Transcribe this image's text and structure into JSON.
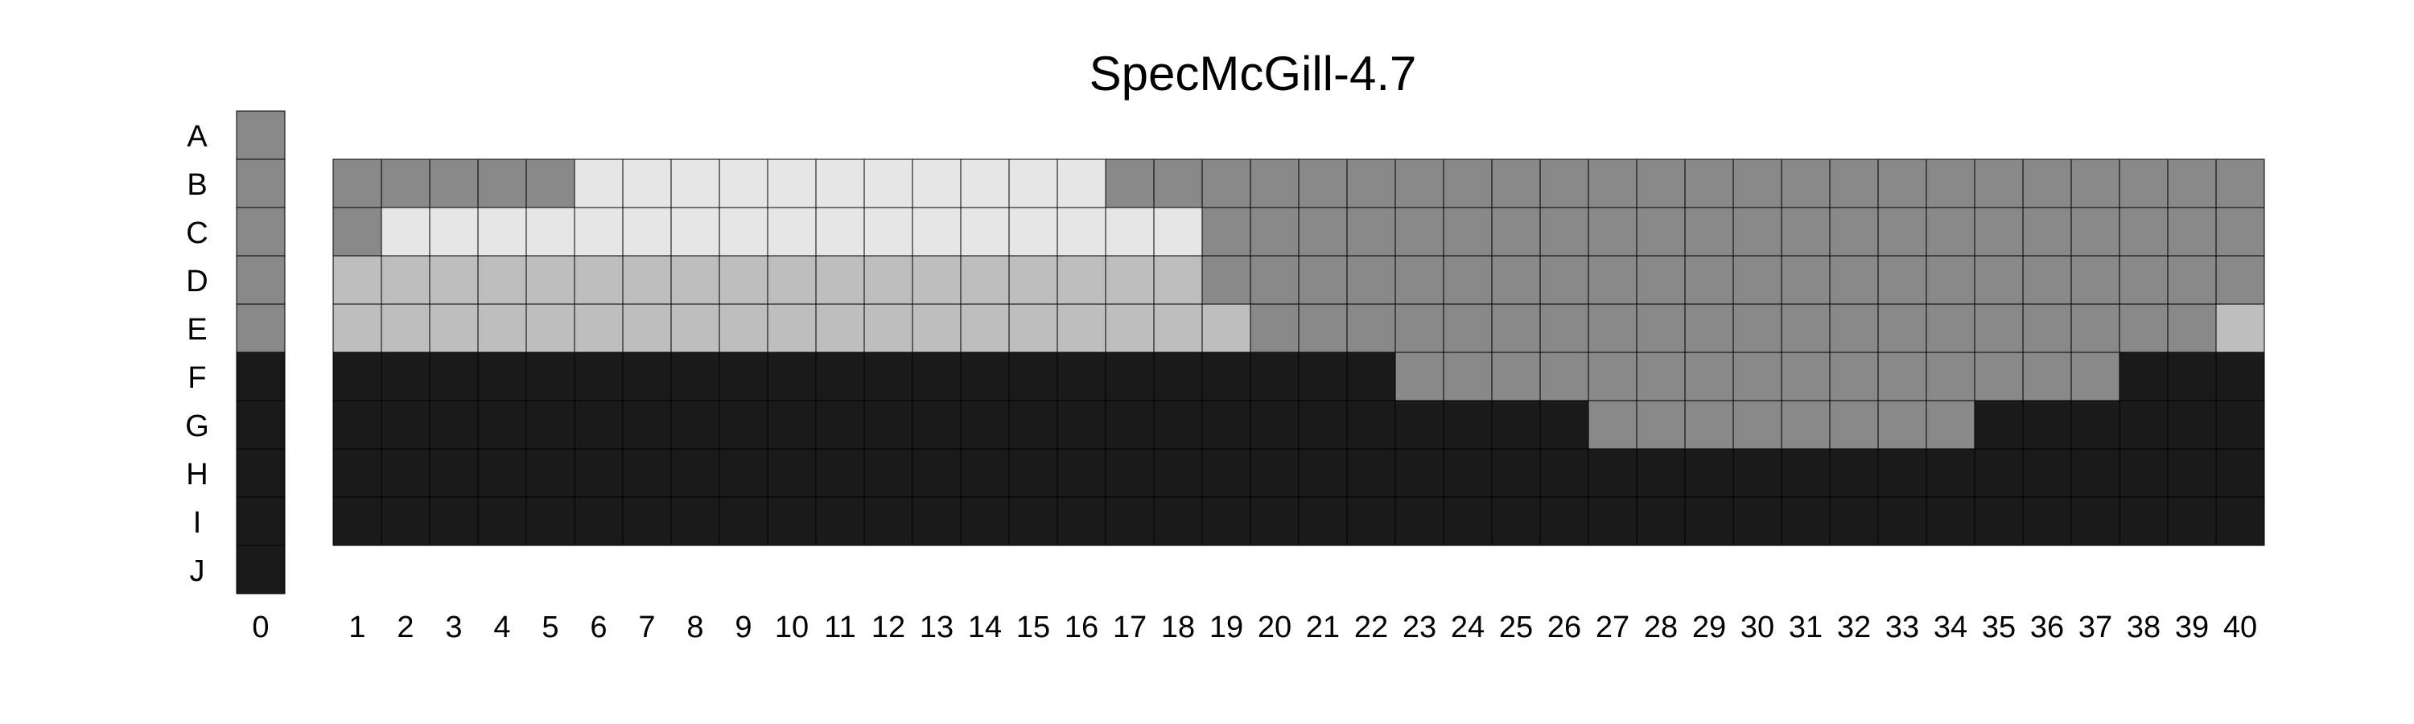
{
  "chart_data": {
    "type": "heatmap",
    "title": "SpecMcGill-4.7",
    "xlabel": "",
    "ylabel": "",
    "rows": [
      "A",
      "B",
      "C",
      "D",
      "E",
      "F",
      "G",
      "H",
      "I",
      "J"
    ],
    "column_0": {
      "label": "0",
      "values": [
        2,
        2,
        2,
        2,
        2,
        3,
        3,
        3,
        3,
        3
      ]
    },
    "columns": [
      "1",
      "2",
      "3",
      "4",
      "5",
      "6",
      "7",
      "8",
      "9",
      "10",
      "11",
      "12",
      "13",
      "14",
      "15",
      "16",
      "17",
      "18",
      "19",
      "20",
      "21",
      "22",
      "23",
      "24",
      "25",
      "26",
      "27",
      "28",
      "29",
      "30",
      "31",
      "32",
      "33",
      "34",
      "35",
      "36",
      "37",
      "38",
      "39",
      "40"
    ],
    "grid_rows": [
      "B",
      "C",
      "D",
      "E",
      "F",
      "G",
      "H",
      "I"
    ],
    "values": [
      [
        2,
        2,
        2,
        2,
        2,
        0,
        0,
        0,
        0,
        0,
        0,
        0,
        0,
        0,
        0,
        0,
        2,
        2,
        2,
        2,
        2,
        2,
        2,
        2,
        2,
        2,
        2,
        2,
        2,
        2,
        2,
        2,
        2,
        2,
        2,
        2,
        2,
        2,
        2,
        2
      ],
      [
        2,
        0,
        0,
        0,
        0,
        0,
        0,
        0,
        0,
        0,
        0,
        0,
        0,
        0,
        0,
        0,
        0,
        0,
        2,
        2,
        2,
        2,
        2,
        2,
        2,
        2,
        2,
        2,
        2,
        2,
        2,
        2,
        2,
        2,
        2,
        2,
        2,
        2,
        2,
        2
      ],
      [
        1,
        1,
        1,
        1,
        1,
        1,
        1,
        1,
        1,
        1,
        1,
        1,
        1,
        1,
        1,
        1,
        1,
        1,
        2,
        2,
        2,
        2,
        2,
        2,
        2,
        2,
        2,
        2,
        2,
        2,
        2,
        2,
        2,
        2,
        2,
        2,
        2,
        2,
        2,
        2
      ],
      [
        1,
        1,
        1,
        1,
        1,
        1,
        1,
        1,
        1,
        1,
        1,
        1,
        1,
        1,
        1,
        1,
        1,
        1,
        1,
        2,
        2,
        2,
        2,
        2,
        2,
        2,
        2,
        2,
        2,
        2,
        2,
        2,
        2,
        2,
        2,
        2,
        2,
        2,
        2,
        1
      ],
      [
        3,
        3,
        3,
        3,
        3,
        3,
        3,
        3,
        3,
        3,
        3,
        3,
        3,
        3,
        3,
        3,
        3,
        3,
        3,
        3,
        3,
        3,
        2,
        2,
        2,
        2,
        2,
        2,
        2,
        2,
        2,
        2,
        2,
        2,
        2,
        2,
        2,
        3,
        3,
        3
      ],
      [
        3,
        3,
        3,
        3,
        3,
        3,
        3,
        3,
        3,
        3,
        3,
        3,
        3,
        3,
        3,
        3,
        3,
        3,
        3,
        3,
        3,
        3,
        3,
        3,
        3,
        3,
        2,
        2,
        2,
        2,
        2,
        2,
        2,
        2,
        3,
        3,
        3,
        3,
        3,
        3
      ],
      [
        3,
        3,
        3,
        3,
        3,
        3,
        3,
        3,
        3,
        3,
        3,
        3,
        3,
        3,
        3,
        3,
        3,
        3,
        3,
        3,
        3,
        3,
        3,
        3,
        3,
        3,
        3,
        3,
        3,
        3,
        3,
        3,
        3,
        3,
        3,
        3,
        3,
        3,
        3,
        3
      ],
      [
        3,
        3,
        3,
        3,
        3,
        3,
        3,
        3,
        3,
        3,
        3,
        3,
        3,
        3,
        3,
        3,
        3,
        3,
        3,
        3,
        3,
        3,
        3,
        3,
        3,
        3,
        3,
        3,
        3,
        3,
        3,
        3,
        3,
        3,
        3,
        3,
        3,
        3,
        3,
        3
      ]
    ],
    "value_colors": [
      "#e6e6e6",
      "#bebebe",
      "#898989",
      "#1a1a1a"
    ],
    "grid": true,
    "legend": "none"
  }
}
